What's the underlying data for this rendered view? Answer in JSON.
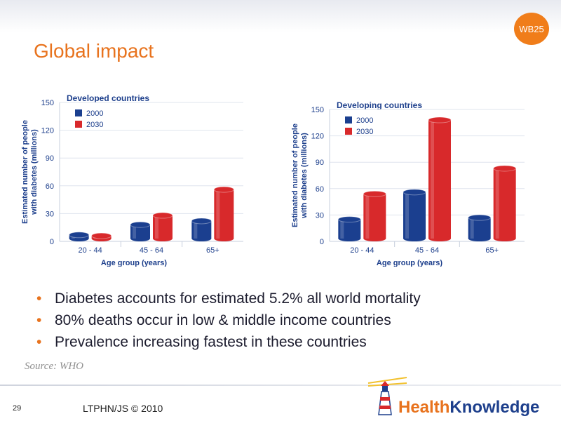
{
  "slide": {
    "badge": "WB25",
    "title": "Global impact",
    "bullets": [
      "Diabetes accounts for estimated 5.2% all world mortality",
      "80% deaths occur in low & middle income countries",
      "Prevalence increasing fastest in these countries"
    ],
    "source": "Source: WHO",
    "page_number": "29",
    "footer": "LTPHN/JS © 2010",
    "logo_text": "HealthKnowledge",
    "colors": {
      "accent": "#e8731e",
      "bar_2000": "#1b3f8f",
      "bar_2030": "#d8292b"
    }
  },
  "chart_data": [
    {
      "type": "bar",
      "title": "Developed countries",
      "categories": [
        "20 - 44",
        "45 - 64",
        "65+"
      ],
      "series": [
        {
          "name": "2000",
          "values": [
            7,
            18,
            22
          ]
        },
        {
          "name": "2030",
          "values": [
            6,
            28,
            56
          ]
        }
      ],
      "xlabel": "Age group (years)",
      "ylabel": "Estimated number of people with diabetes (millions)",
      "ylim": [
        0,
        150
      ],
      "yticks": [
        0,
        30,
        60,
        90,
        120,
        150
      ],
      "grid": true,
      "legend": "top-left"
    },
    {
      "type": "bar",
      "title": "Developing countries",
      "categories": [
        "20 - 44",
        "45 - 64",
        "65+"
      ],
      "series": [
        {
          "name": "2000",
          "values": [
            25,
            56,
            27
          ]
        },
        {
          "name": "2030",
          "values": [
            54,
            138,
            83
          ]
        }
      ],
      "xlabel": "Age group (years)",
      "ylabel": "Estimated number of people with diabetes (millions)",
      "ylim": [
        0,
        150
      ],
      "yticks": [
        0,
        30,
        60,
        90,
        120,
        150
      ],
      "grid": true,
      "legend": "top-left"
    }
  ]
}
